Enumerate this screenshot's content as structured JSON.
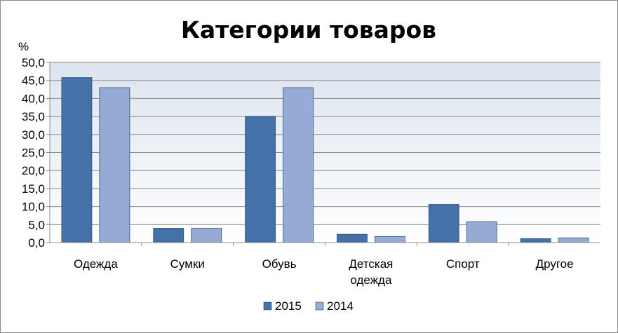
{
  "chart_data": {
    "type": "bar",
    "title": "Категории товаров",
    "ylabel": "%",
    "xlabel": "",
    "ylim": [
      0,
      50
    ],
    "ytick_step": 5,
    "ytick_labels": [
      "0,0",
      "5,0",
      "10,0",
      "15,0",
      "20,0",
      "25,0",
      "30,0",
      "35,0",
      "40,0",
      "45,0",
      "50,0"
    ],
    "grid": true,
    "legend_position": "bottom",
    "categories": [
      [
        "Одежда"
      ],
      [
        "Сумки"
      ],
      [
        "Обувь"
      ],
      [
        "Детская",
        "одежда"
      ],
      [
        "Спорт"
      ],
      [
        "Другое"
      ]
    ],
    "series": [
      {
        "name": "2015",
        "color": "#4472a8",
        "values": [
          45.8,
          4.0,
          35.0,
          2.3,
          10.6,
          1.1
        ]
      },
      {
        "name": "2014",
        "color": "#95aad4",
        "values": [
          43.0,
          4.0,
          43.0,
          1.7,
          5.8,
          1.3
        ]
      }
    ]
  }
}
